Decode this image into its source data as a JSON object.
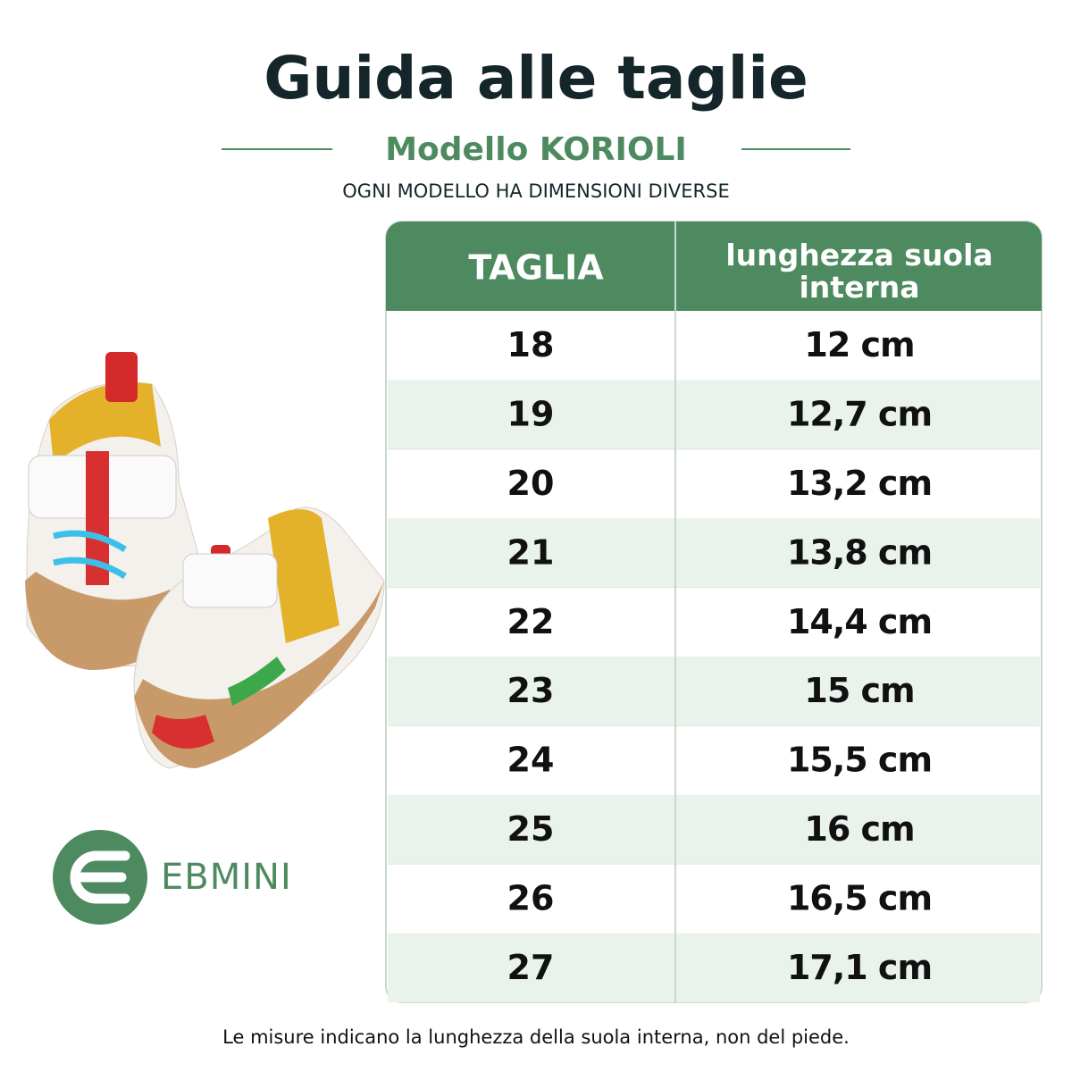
{
  "header": {
    "title": "Guida alle taglie",
    "subtitle": "Modello KORIOLI",
    "note": "OGNI MODELLO HA DIMENSIONI DIVERSE"
  },
  "table": {
    "columns": [
      "TAGLIA",
      "lunghezza suola interna"
    ],
    "rows": [
      [
        "18",
        "12 cm"
      ],
      [
        "19",
        "12,7 cm"
      ],
      [
        "20",
        "13,2 cm"
      ],
      [
        "21",
        "13,8 cm"
      ],
      [
        "22",
        "14,4 cm"
      ],
      [
        "23",
        "15 cm"
      ],
      [
        "24",
        "15,5 cm"
      ],
      [
        "25",
        "16 cm"
      ],
      [
        "26",
        "16,5 cm"
      ],
      [
        "27",
        "17,1 cm"
      ]
    ]
  },
  "logo": {
    "brand": "EBMINI"
  },
  "footer": "Le misure indicano la lunghezza della suola interna, non del piede."
}
